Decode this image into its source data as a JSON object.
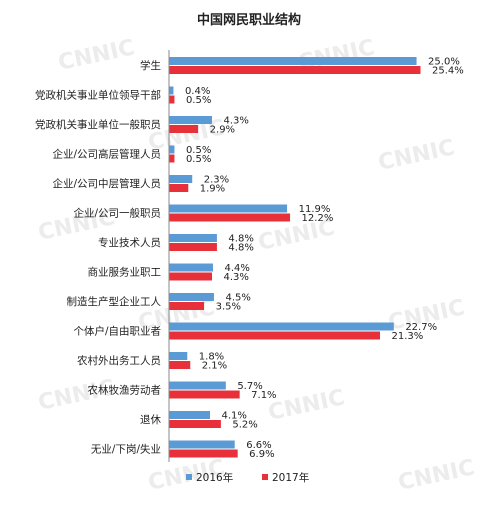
{
  "chart_data": {
    "type": "bar",
    "orientation": "horizontal",
    "title": "中国网民职业结构",
    "watermark": "CNNIC",
    "categories": [
      "学生",
      "党政机关事业单位领导干部",
      "党政机关事业单位一般职员",
      "企业/公司高层管理人员",
      "企业/公司中层管理人员",
      "企业/公司一般职员",
      "专业技术人员",
      "商业服务业职工",
      "制造生产型企业工人",
      "个体户/自由职业者",
      "农村外出务工人员",
      "农林牧渔劳动者",
      "退休",
      "无业/下岗/失业"
    ],
    "series": [
      {
        "name": "2016年",
        "color": "#5b9bd5",
        "values": [
          25.0,
          0.4,
          4.3,
          0.5,
          2.3,
          11.9,
          4.8,
          4.4,
          4.5,
          22.7,
          1.8,
          5.7,
          4.1,
          6.6
        ],
        "labels": [
          "25.0%",
          "0.4%",
          "4.3%",
          "0.5%",
          "2.3%",
          "11.9%",
          "4.8%",
          "4.4%",
          "4.5%",
          "22.7%",
          "1.8%",
          "5.7%",
          "4.1%",
          "6.6%"
        ]
      },
      {
        "name": "2017年",
        "color": "#e8303a",
        "values": [
          25.4,
          0.5,
          2.9,
          0.5,
          1.9,
          12.2,
          4.8,
          4.3,
          3.5,
          21.3,
          2.1,
          7.1,
          5.2,
          6.9
        ],
        "labels": [
          "25.4%",
          "0.5%",
          "2.9%",
          "0.5%",
          "1.9%",
          "12.2%",
          "4.8%",
          "4.3%",
          "3.5%",
          "21.3%",
          "2.1%",
          "7.1%",
          "5.2%",
          "6.9%"
        ]
      }
    ],
    "xlim": [
      0,
      25.4
    ],
    "grid": false,
    "legend_position": "bottom"
  }
}
